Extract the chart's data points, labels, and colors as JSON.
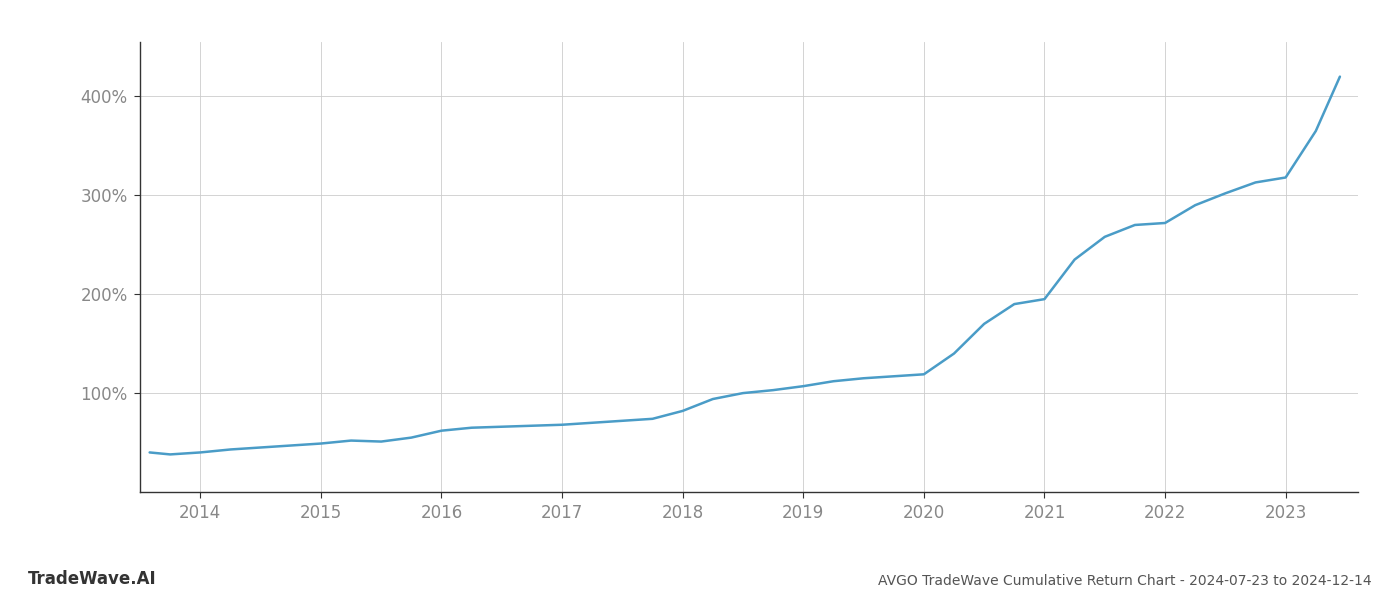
{
  "title": "AVGO TradeWave Cumulative Return Chart - 2024-07-23 to 2024-12-14",
  "watermark": "TradeWave.AI",
  "line_color": "#4a9cc7",
  "line_width": 1.8,
  "background_color": "#ffffff",
  "grid_color": "#cccccc",
  "x_values": [
    2013.58,
    2013.75,
    2014.0,
    2014.25,
    2014.5,
    2014.75,
    2015.0,
    2015.25,
    2015.5,
    2015.75,
    2016.0,
    2016.25,
    2016.5,
    2016.75,
    2017.0,
    2017.25,
    2017.5,
    2017.75,
    2018.0,
    2018.25,
    2018.5,
    2018.75,
    2019.0,
    2019.25,
    2019.5,
    2019.75,
    2020.0,
    2020.25,
    2020.5,
    2020.75,
    2021.0,
    2021.25,
    2021.5,
    2021.75,
    2022.0,
    2022.25,
    2022.5,
    2022.75,
    2023.0,
    2023.25,
    2023.45
  ],
  "y_values": [
    40,
    38,
    40,
    43,
    45,
    47,
    49,
    52,
    51,
    55,
    62,
    65,
    66,
    67,
    68,
    70,
    72,
    74,
    82,
    94,
    100,
    103,
    107,
    112,
    115,
    117,
    119,
    140,
    170,
    190,
    195,
    235,
    258,
    270,
    272,
    290,
    302,
    313,
    318,
    365,
    420
  ],
  "xlim": [
    2013.5,
    2023.6
  ],
  "ylim": [
    0,
    455
  ],
  "yticks": [
    100,
    200,
    300,
    400
  ],
  "ytick_labels": [
    "100%",
    "200%",
    "300%",
    "400%"
  ],
  "xticks": [
    2014,
    2015,
    2016,
    2017,
    2018,
    2019,
    2020,
    2021,
    2022,
    2023
  ],
  "xtick_labels": [
    "2014",
    "2015",
    "2016",
    "2017",
    "2018",
    "2019",
    "2020",
    "2021",
    "2022",
    "2023"
  ],
  "tick_fontsize": 12,
  "title_fontsize": 10,
  "watermark_fontsize": 12,
  "spine_color": "#333333",
  "tick_color": "#888888",
  "label_color": "#888888"
}
